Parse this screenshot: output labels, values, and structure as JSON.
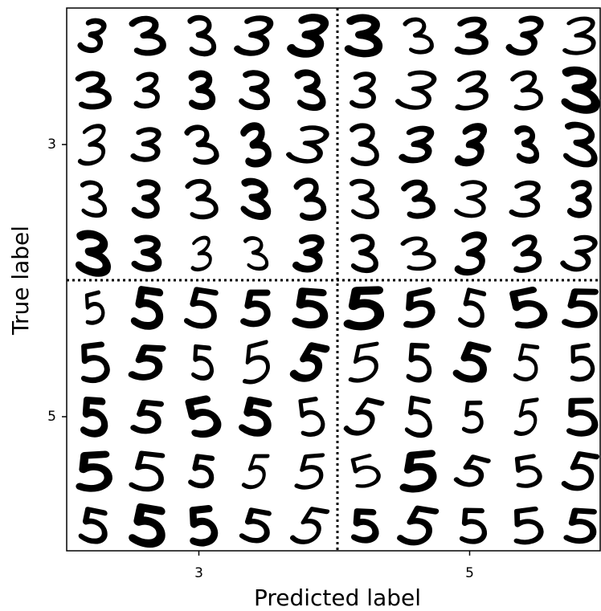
{
  "chart_data": {
    "type": "image_grid",
    "xlabel": "Predicted label",
    "ylabel": "True label",
    "categories": [
      "3",
      "5"
    ],
    "y_categories": [
      "3",
      "5"
    ]
  }
}
